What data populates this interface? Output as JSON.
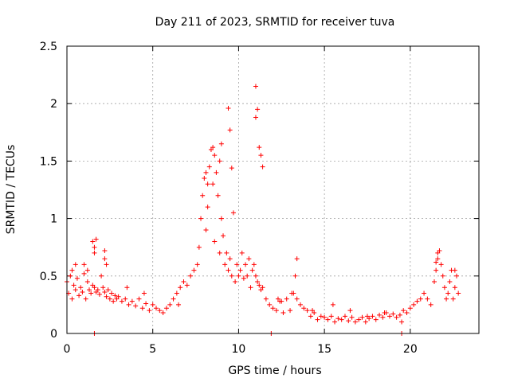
{
  "chart_data": {
    "type": "scatter",
    "title": "Day 211 of 2023, SRMTID for receiver tuva",
    "xlabel": "GPS time / hours",
    "ylabel": "SRMTID / TECUs",
    "xlim": [
      0,
      24
    ],
    "ylim": [
      0,
      2.5
    ],
    "xticks": [
      0,
      5,
      10,
      15,
      20
    ],
    "xtick_labels": [
      "0",
      "5",
      "10",
      "15",
      "20"
    ],
    "yticks": [
      0,
      0.5,
      1,
      1.5,
      2,
      2.5
    ],
    "ytick_labels": [
      "0",
      "0.5",
      "1",
      "1.5",
      "2",
      "2.5"
    ],
    "grid": true,
    "marker": "plus",
    "series": [
      {
        "name": "SRMTID",
        "color": "#ff0000",
        "x": [
          0.0,
          0.1,
          0.2,
          0.3,
          0.4,
          0.5,
          0.6,
          0.7,
          0.8,
          0.9,
          1.0,
          1.1,
          1.2,
          1.3,
          1.4,
          1.5,
          1.6,
          1.7,
          1.8,
          1.9,
          2.0,
          2.1,
          2.2,
          2.3,
          2.4,
          2.5,
          2.6,
          2.7,
          2.8,
          2.9,
          3.0,
          3.2,
          3.4,
          3.6,
          3.8,
          4.0,
          4.2,
          4.4,
          4.6,
          4.8,
          5.0,
          5.2,
          5.4,
          5.6,
          5.8,
          6.0,
          6.2,
          6.4,
          6.6,
          6.8,
          7.0,
          7.2,
          7.4,
          7.6,
          7.7,
          7.8,
          7.9,
          8.0,
          8.1,
          8.2,
          8.3,
          8.4,
          8.5,
          8.6,
          8.7,
          8.8,
          8.9,
          9.0,
          9.1,
          9.2,
          9.3,
          9.4,
          9.5,
          9.6,
          9.7,
          9.8,
          9.9,
          10.0,
          10.1,
          10.2,
          10.3,
          10.4,
          10.5,
          10.6,
          10.7,
          10.8,
          10.9,
          11.0,
          11.1,
          11.2,
          11.3,
          11.4,
          11.6,
          11.8,
          12.0,
          12.2,
          12.4,
          12.6,
          12.8,
          13.0,
          13.2,
          13.3,
          13.4,
          13.6,
          13.8,
          14.0,
          14.2,
          14.4,
          14.6,
          14.8,
          15.0,
          15.2,
          15.4,
          15.6,
          15.8,
          16.0,
          16.2,
          16.4,
          16.6,
          16.8,
          17.0,
          17.2,
          17.4,
          17.6,
          17.8,
          18.0,
          18.2,
          18.4,
          18.6,
          18.8,
          19.0,
          19.2,
          19.4,
          19.6,
          19.8,
          20.0,
          20.2,
          20.4,
          20.6,
          20.8,
          21.0,
          21.2,
          21.4,
          21.5,
          21.6,
          21.7,
          21.8,
          21.9,
          22.0,
          22.1,
          22.2,
          22.3,
          22.4,
          22.5,
          22.6,
          22.7,
          22.8,
          1.5,
          1.6,
          1.6,
          1.7,
          2.2,
          2.2,
          2.3,
          9.4,
          9.5,
          9.6,
          11.0,
          11.1,
          11.0,
          11.3,
          11.4,
          11.2,
          9.0,
          8.9,
          8.5,
          8.6,
          8.1,
          8.2,
          0.3,
          0.5,
          1.0,
          1.2,
          3.5,
          4.5,
          6.5,
          12.3,
          12.5,
          13.1,
          13.4,
          14.3,
          15.5,
          16.5,
          17.5,
          18.5,
          19.5,
          21.5,
          21.6,
          22.6,
          1.6,
          11.9,
          19.5
        ],
        "y": [
          0.45,
          0.35,
          0.5,
          0.3,
          0.42,
          0.38,
          0.48,
          0.33,
          0.4,
          0.36,
          0.52,
          0.3,
          0.45,
          0.38,
          0.35,
          0.42,
          0.4,
          0.36,
          0.38,
          0.34,
          0.5,
          0.4,
          0.36,
          0.32,
          0.38,
          0.3,
          0.35,
          0.28,
          0.33,
          0.3,
          0.32,
          0.28,
          0.3,
          0.25,
          0.28,
          0.24,
          0.3,
          0.22,
          0.26,
          0.2,
          0.25,
          0.22,
          0.2,
          0.18,
          0.22,
          0.25,
          0.3,
          0.35,
          0.4,
          0.45,
          0.42,
          0.5,
          0.55,
          0.6,
          0.75,
          1.0,
          1.2,
          1.35,
          0.9,
          1.1,
          1.45,
          1.6,
          1.3,
          0.8,
          1.4,
          1.2,
          0.7,
          1.0,
          0.85,
          0.6,
          0.7,
          0.55,
          0.65,
          0.5,
          1.05,
          0.45,
          0.6,
          0.5,
          0.55,
          0.7,
          0.48,
          0.6,
          0.5,
          0.65,
          0.4,
          0.55,
          0.6,
          0.5,
          0.45,
          0.42,
          0.38,
          0.4,
          0.3,
          0.25,
          0.22,
          0.2,
          0.28,
          0.18,
          0.3,
          0.2,
          0.35,
          0.5,
          0.3,
          0.25,
          0.22,
          0.2,
          0.15,
          0.18,
          0.12,
          0.15,
          0.14,
          0.12,
          0.15,
          0.1,
          0.13,
          0.12,
          0.15,
          0.11,
          0.14,
          0.1,
          0.12,
          0.14,
          0.1,
          0.13,
          0.15,
          0.12,
          0.16,
          0.14,
          0.18,
          0.15,
          0.17,
          0.14,
          0.16,
          0.2,
          0.18,
          0.22,
          0.25,
          0.28,
          0.3,
          0.35,
          0.3,
          0.25,
          0.45,
          0.55,
          0.65,
          0.72,
          0.6,
          0.5,
          0.4,
          0.3,
          0.35,
          0.45,
          0.55,
          0.3,
          0.4,
          0.5,
          0.35,
          0.8,
          0.75,
          0.7,
          0.82,
          0.65,
          0.72,
          0.6,
          1.96,
          1.77,
          1.44,
          2.15,
          1.95,
          1.88,
          1.55,
          1.45,
          1.62,
          1.65,
          1.5,
          1.62,
          1.55,
          1.4,
          1.3,
          0.55,
          0.6,
          0.6,
          0.55,
          0.4,
          0.35,
          0.25,
          0.3,
          0.28,
          0.35,
          0.65,
          0.2,
          0.25,
          0.2,
          0.15,
          0.18,
          0.1,
          0.62,
          0.7,
          0.55,
          0.0,
          0.0,
          0.0
        ]
      }
    ]
  }
}
